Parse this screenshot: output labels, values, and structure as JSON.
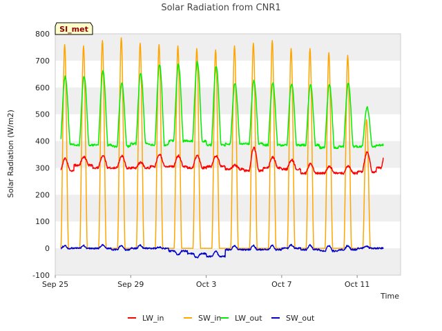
{
  "chart_data": {
    "type": "line",
    "title": "Solar Radiation from CNR1",
    "xlabel": "Time",
    "ylabel": "Solar Radiation (W/m2)",
    "ylim": [
      -100,
      800
    ],
    "yticks": [
      -100,
      0,
      100,
      200,
      300,
      400,
      500,
      600,
      700,
      800
    ],
    "xlim_days": [
      0,
      18.3
    ],
    "xtick_labels": [
      "Sep 25",
      "Sep 29",
      "Oct 3",
      "Oct 7",
      "Oct 11"
    ],
    "xtick_days": [
      0,
      4,
      8,
      12,
      16
    ],
    "grid": "alternating horizontal bands",
    "legend_position": "bottom",
    "badge": "SI_met",
    "colors": {
      "LW_in": "#ff0000",
      "SW_in": "#ffa500",
      "LW_out": "#00ee00",
      "SW_out": "#0000cc",
      "band": "#efefef"
    },
    "x_start_day": 0.3,
    "x_end_day": 17.4,
    "days": [
      "Sep 25",
      "Sep 26",
      "Sep 27",
      "Sep 28",
      "Sep 29",
      "Sep 30",
      "Oct 1",
      "Oct 2",
      "Oct 3",
      "Oct 4",
      "Oct 5",
      "Oct 6",
      "Oct 7",
      "Oct 8",
      "Oct 9",
      "Oct 10",
      "Oct 11",
      "Oct 12"
    ],
    "series": [
      {
        "name": "LW_in",
        "color": "#ff0000",
        "night": [
          288,
          310,
          300,
          300,
          300,
          305,
          305,
          300,
          305,
          295,
          290,
          300,
          295,
          280,
          280,
          280,
          285,
          300
        ],
        "day": [
          335,
          340,
          345,
          345,
          320,
          350,
          345,
          345,
          345,
          310,
          375,
          340,
          330,
          315,
          305,
          305,
          360,
          365
        ]
      },
      {
        "name": "SW_in",
        "color": "#ffa500",
        "night": [
          0,
          0,
          0,
          0,
          0,
          0,
          0,
          0,
          0,
          0,
          0,
          0,
          0,
          0,
          0,
          0,
          0,
          0
        ],
        "day": [
          760,
          755,
          775,
          785,
          765,
          760,
          755,
          745,
          740,
          755,
          765,
          775,
          745,
          745,
          730,
          720,
          480,
          0
        ]
      },
      {
        "name": "LW_out",
        "color": "#00ee00",
        "night": [
          388,
          385,
          385,
          380,
          390,
          385,
          400,
          400,
          385,
          390,
          390,
          385,
          385,
          385,
          375,
          380,
          380,
          385
        ],
        "day": [
          640,
          640,
          660,
          615,
          655,
          685,
          685,
          695,
          680,
          615,
          625,
          615,
          615,
          610,
          610,
          615,
          525,
          385
        ]
      },
      {
        "name": "SW_out",
        "color": "#0000cc",
        "night": [
          0,
          0,
          0,
          -5,
          0,
          0,
          -10,
          -20,
          -30,
          -5,
          -5,
          -5,
          0,
          -5,
          -10,
          -5,
          0,
          0
        ],
        "day": [
          10,
          10,
          12,
          12,
          12,
          5,
          -25,
          -35,
          -10,
          10,
          10,
          10,
          12,
          12,
          10,
          10,
          8,
          0
        ]
      }
    ]
  }
}
